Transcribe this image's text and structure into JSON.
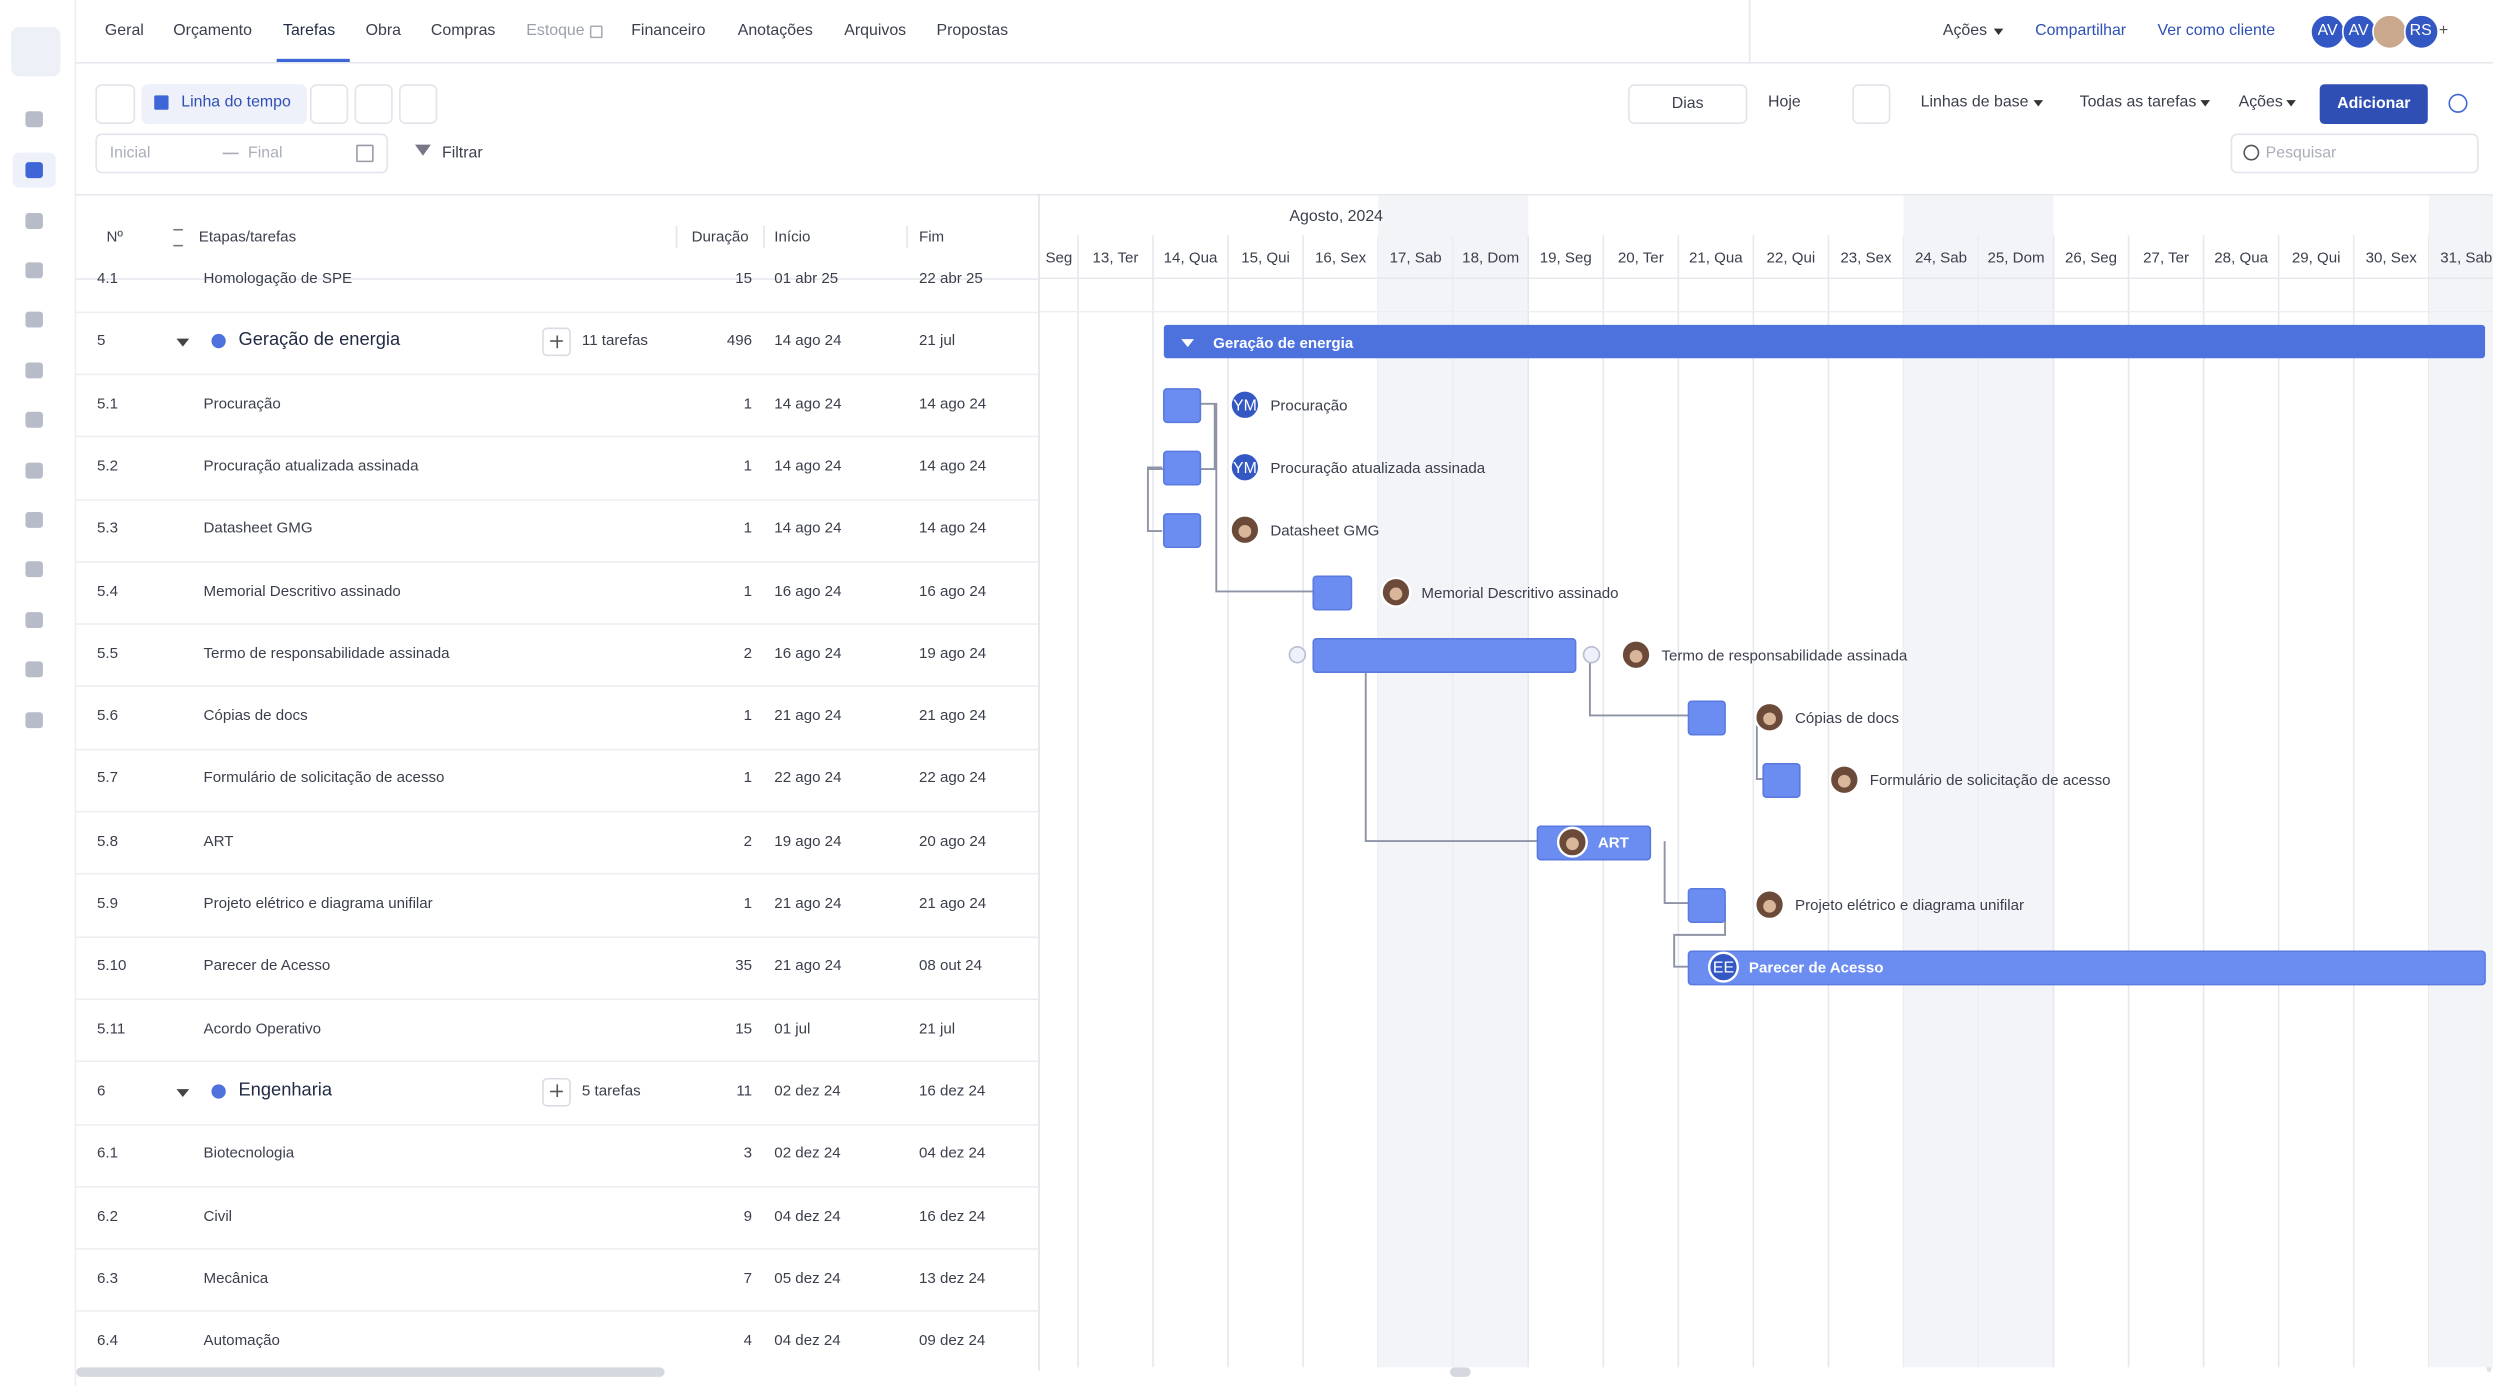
{
  "tabs": [
    {
      "label": "Geral"
    },
    {
      "label": "Orçamento"
    },
    {
      "label": "Tarefas",
      "active": true
    },
    {
      "label": "Obra"
    },
    {
      "label": "Compras"
    },
    {
      "label": "Estoque",
      "locked": true
    },
    {
      "label": "Financeiro"
    },
    {
      "label": "Anotações"
    },
    {
      "label": "Arquivos"
    },
    {
      "label": "Propostas"
    }
  ],
  "header_actions": {
    "actions": "Ações",
    "share": "Compartilhar",
    "client_view": "Ver como cliente",
    "avatars": [
      "AV",
      "AV",
      null,
      "RS"
    ],
    "more": "+"
  },
  "toolbar": {
    "view": "Linha do tempo",
    "scale": "Dias",
    "today": "Hoje",
    "baselines": "Linhas de base",
    "filter_tasks": "Todas as tarefas",
    "actions": "Ações",
    "add": "Adicionar",
    "start_placeholder": "Inicial",
    "end_placeholder": "Final",
    "filter": "Filtrar",
    "search": "Pesquisar"
  },
  "table": {
    "columns": [
      "Nº",
      "Etapas/tarefas",
      "Duração",
      "Início",
      "Fim"
    ],
    "rows": [
      {
        "no": "4.1",
        "name": "Homologação de SPE",
        "duration": 15,
        "start": "01 abr 25",
        "end": "22 abr 25"
      },
      {
        "no": "5",
        "name": "Geração de energia",
        "group": true,
        "count": "11 tarefas",
        "duration": 496,
        "start": "14 ago 24",
        "end": "21 jul"
      },
      {
        "no": "5.1",
        "name": "Procuração",
        "duration": 1,
        "start": "14 ago 24",
        "end": "14 ago 24",
        "assignee": "YM"
      },
      {
        "no": "5.2",
        "name": "Procuração atualizada assinada",
        "duration": 1,
        "start": "14 ago 24",
        "end": "14 ago 24",
        "assignee": "YM"
      },
      {
        "no": "5.3",
        "name": "Datasheet GMG",
        "duration": 1,
        "start": "14 ago 24",
        "end": "14 ago 24"
      },
      {
        "no": "5.4",
        "name": "Memorial Descritivo assinado",
        "duration": 1,
        "start": "16 ago 24",
        "end": "16 ago 24"
      },
      {
        "no": "5.5",
        "name": "Termo de responsabilidade assinada",
        "duration": 2,
        "start": "16 ago 24",
        "end": "19 ago 24"
      },
      {
        "no": "5.6",
        "name": "Cópias de docs",
        "duration": 1,
        "start": "21 ago 24",
        "end": "21 ago 24"
      },
      {
        "no": "5.7",
        "name": "Formulário de solicitação de acesso",
        "duration": 1,
        "start": "22 ago 24",
        "end": "22 ago 24"
      },
      {
        "no": "5.8",
        "name": "ART",
        "duration": 2,
        "start": "19 ago 24",
        "end": "20 ago 24"
      },
      {
        "no": "5.9",
        "name": "Projeto elétrico e diagrama unifilar",
        "duration": 1,
        "start": "21 ago 24",
        "end": "21 ago 24"
      },
      {
        "no": "5.10",
        "name": "Parecer de Acesso",
        "duration": 35,
        "start": "21 ago 24",
        "end": "08 out 24",
        "assignee": "EE"
      },
      {
        "no": "5.11",
        "name": "Acordo Operativo",
        "duration": 15,
        "start": "01 jul",
        "end": "21 jul"
      },
      {
        "no": "6",
        "name": "Engenharia",
        "group": true,
        "count": "5 tarefas",
        "duration": 11,
        "start": "02 dez 24",
        "end": "16 dez 24"
      },
      {
        "no": "6.1",
        "name": "Biotecnologia",
        "duration": 3,
        "start": "02 dez 24",
        "end": "04 dez 24"
      },
      {
        "no": "6.2",
        "name": "Civil",
        "duration": 9,
        "start": "04 dez 24",
        "end": "16 dez 24"
      },
      {
        "no": "6.3",
        "name": "Mecânica",
        "duration": 7,
        "start": "05 dez 24",
        "end": "13 dez 24"
      },
      {
        "no": "6.4",
        "name": "Automação",
        "duration": 4,
        "start": "04 dez 24",
        "end": "09 dez 24"
      }
    ]
  },
  "gantt": {
    "month": "Agosto, 2024",
    "days": [
      {
        "label": "Seg"
      },
      {
        "label": "13, Ter"
      },
      {
        "label": "14, Qua"
      },
      {
        "label": "15, Qui"
      },
      {
        "label": "16, Sex"
      },
      {
        "label": "17, Sab",
        "weekend": true
      },
      {
        "label": "18, Dom",
        "weekend": true
      },
      {
        "label": "19, Seg"
      },
      {
        "label": "20, Ter"
      },
      {
        "label": "21, Qua"
      },
      {
        "label": "22, Qui"
      },
      {
        "label": "23, Sex"
      },
      {
        "label": "24, Sab",
        "weekend": true
      },
      {
        "label": "25, Dom",
        "weekend": true
      },
      {
        "label": "26, Seg"
      },
      {
        "label": "27, Ter"
      },
      {
        "label": "28, Qua"
      },
      {
        "label": "29, Qui"
      },
      {
        "label": "30, Sex"
      },
      {
        "label": "31, Sab",
        "weekend": true
      }
    ]
  }
}
